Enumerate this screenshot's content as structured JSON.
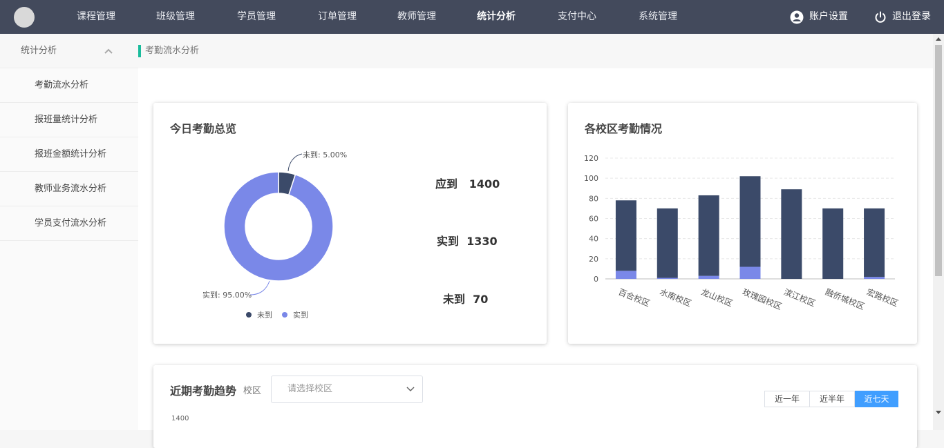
{
  "topnav": {
    "items": [
      "课程管理",
      "班级管理",
      "学员管理",
      "订单管理",
      "教师管理",
      "统计分析",
      "支付中心",
      "系统管理"
    ],
    "active_index": 5,
    "account_label": "账户设置",
    "logout_label": "退出登录"
  },
  "sidebar": {
    "group_label": "统计分析",
    "items": [
      "考勤流水分析",
      "报班量统计分析",
      "报班金额统计分析",
      "教师业务流水分析",
      "学员支付流水分析"
    ]
  },
  "breadcrumb": {
    "current": "考勤流水分析"
  },
  "today_card": {
    "title": "今日考勤总览",
    "expected_label": "应到",
    "expected_value": "1400",
    "present_label": "实到",
    "present_value": "1330",
    "absent_label": "未到",
    "absent_value": "70"
  },
  "campus_card": {
    "title": "各校区考勤情况"
  },
  "trend_card": {
    "title": "近期考勤趋势",
    "campus_label": "校区",
    "campus_placeholder": "请选择校区",
    "ranges": [
      "近一年",
      "近半年",
      "近七天"
    ],
    "active_range": 2,
    "partial_tick": "1400"
  },
  "colors": {
    "absent": "#3b4a69",
    "present": "#7a88e8",
    "nav_bg": "#434a5c",
    "accent": "#1abc9c",
    "primary": "#409eff"
  },
  "chart_data": [
    {
      "type": "pie",
      "title": "今日考勤总览",
      "donut": true,
      "labels": [
        "未到",
        "实到"
      ],
      "values": [
        5.0,
        95.0
      ],
      "data_labels": [
        "未到: 5.00%",
        "实到: 95.00%"
      ],
      "legend": [
        "未到",
        "实到"
      ],
      "legend_position": "bottom"
    },
    {
      "type": "bar",
      "stacked": true,
      "title": "各校区考勤情况",
      "categories": [
        "百合校区",
        "水南校区",
        "龙山校区",
        "玫瑰园校区",
        "滨江校区",
        "融侨城校区",
        "宏路校区"
      ],
      "series": [
        {
          "name": "未到",
          "values": [
            70,
            69,
            80,
            90,
            89,
            70,
            68
          ]
        },
        {
          "name": "实到",
          "values": [
            8,
            1,
            3,
            12,
            0,
            0,
            2
          ]
        }
      ],
      "ylim": [
        0,
        120
      ],
      "yticks": [
        0,
        20,
        40,
        60,
        80,
        100,
        120
      ],
      "grid": true
    }
  ]
}
